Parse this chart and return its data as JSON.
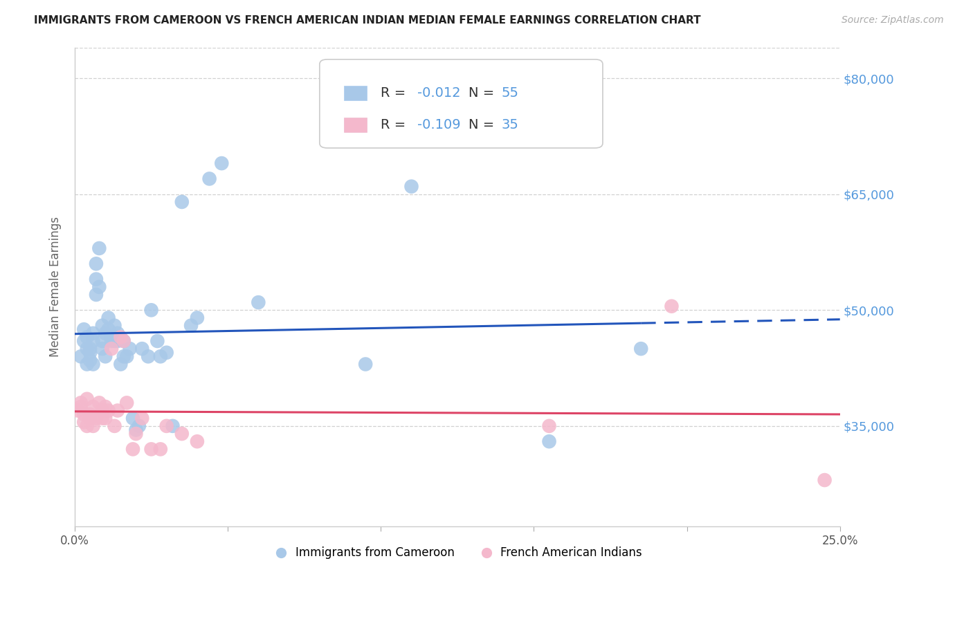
{
  "title": "IMMIGRANTS FROM CAMEROON VS FRENCH AMERICAN INDIAN MEDIAN FEMALE EARNINGS CORRELATION CHART",
  "source": "Source: ZipAtlas.com",
  "ylabel": "Median Female Earnings",
  "yticks": [
    35000,
    50000,
    65000,
    80000
  ],
  "ytick_labels": [
    "$35,000",
    "$50,000",
    "$65,000",
    "$80,000"
  ],
  "xlim": [
    0.0,
    0.25
  ],
  "ylim": [
    22000,
    84000
  ],
  "bg_color": "#ffffff",
  "grid_color": "#cccccc",
  "blue_dot_color": "#a8c8e8",
  "pink_dot_color": "#f4b8cc",
  "reg_blue_color": "#2255bb",
  "reg_pink_color": "#dd4466",
  "yaxis_tick_color": "#5599dd",
  "label_blue": "Immigrants from Cameroon",
  "label_pink": "French American Indians",
  "blue_dots_x": [
    0.002,
    0.003,
    0.003,
    0.004,
    0.004,
    0.004,
    0.005,
    0.005,
    0.005,
    0.006,
    0.006,
    0.006,
    0.007,
    0.007,
    0.007,
    0.008,
    0.008,
    0.009,
    0.009,
    0.009,
    0.01,
    0.01,
    0.011,
    0.011,
    0.012,
    0.012,
    0.013,
    0.013,
    0.014,
    0.014,
    0.015,
    0.016,
    0.016,
    0.017,
    0.018,
    0.019,
    0.02,
    0.021,
    0.022,
    0.024,
    0.025,
    0.027,
    0.028,
    0.03,
    0.032,
    0.035,
    0.038,
    0.04,
    0.044,
    0.048,
    0.06,
    0.095,
    0.11,
    0.155,
    0.185
  ],
  "blue_dots_y": [
    44000,
    46000,
    47500,
    45000,
    43000,
    46500,
    44500,
    45000,
    43500,
    47000,
    46000,
    43000,
    56000,
    54000,
    52000,
    58000,
    53000,
    46000,
    48000,
    45000,
    47000,
    44000,
    47500,
    49000,
    46500,
    46000,
    48000,
    46000,
    46000,
    47000,
    43000,
    46000,
    44000,
    44000,
    45000,
    36000,
    34500,
    35000,
    45000,
    44000,
    50000,
    46000,
    44000,
    44500,
    35000,
    64000,
    48000,
    49000,
    67000,
    69000,
    51000,
    43000,
    66000,
    33000,
    45000
  ],
  "pink_dots_x": [
    0.001,
    0.002,
    0.002,
    0.003,
    0.003,
    0.004,
    0.004,
    0.005,
    0.005,
    0.006,
    0.006,
    0.007,
    0.008,
    0.009,
    0.009,
    0.01,
    0.01,
    0.011,
    0.012,
    0.013,
    0.014,
    0.015,
    0.016,
    0.017,
    0.019,
    0.02,
    0.022,
    0.025,
    0.028,
    0.03,
    0.035,
    0.04,
    0.155,
    0.195,
    0.245
  ],
  "pink_dots_y": [
    37000,
    37500,
    38000,
    36500,
    35500,
    35000,
    38500,
    36000,
    36500,
    37500,
    35000,
    36000,
    38000,
    37000,
    36000,
    37500,
    36000,
    37000,
    45000,
    35000,
    37000,
    46500,
    46000,
    38000,
    32000,
    34000,
    36000,
    32000,
    32000,
    35000,
    34000,
    33000,
    35000,
    50500,
    28000
  ]
}
